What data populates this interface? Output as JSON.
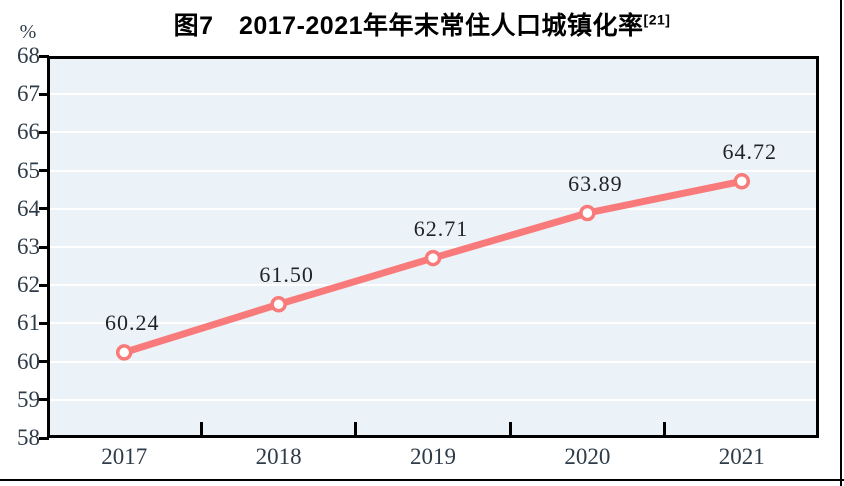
{
  "title": {
    "text": "图7　2017-2021年年末常住人口城镇化率",
    "superscript": "[21]"
  },
  "chart_data": {
    "type": "line",
    "title": "图7 2017-2021年年末常住人口城镇化率[21]",
    "unit_label": "%",
    "categories": [
      "2017",
      "2018",
      "2019",
      "2020",
      "2021"
    ],
    "values": [
      60.24,
      61.5,
      62.71,
      63.89,
      64.72
    ],
    "data_labels": [
      "60.24",
      "61.50",
      "62.71",
      "63.89",
      "64.72"
    ],
    "ylim": [
      58,
      68
    ],
    "y_ticks": [
      58,
      59,
      60,
      61,
      62,
      63,
      64,
      65,
      66,
      67,
      68
    ],
    "grid": true,
    "legend": "none",
    "colors": {
      "line": "#f87a7a",
      "marker_fill": "#ffffff",
      "plot_background": "#ecf3f8",
      "gridline": "#ffffff",
      "axis_text": "#2e3b48",
      "data_label_text": "#1f2328",
      "border": "#000000"
    }
  }
}
